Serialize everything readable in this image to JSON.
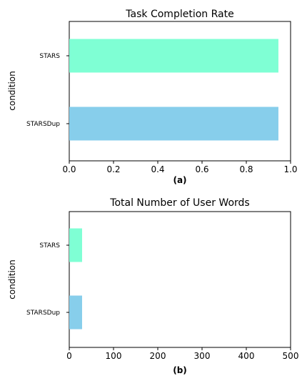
{
  "chart_data": [
    {
      "type": "bar",
      "orientation": "horizontal",
      "title": "Task Completion Rate",
      "xlabel": "(a)",
      "ylabel": "condition",
      "categories": [
        "STARS",
        "STARSDup"
      ],
      "values": [
        0.945,
        0.945
      ],
      "colors": [
        "#7fffd4",
        "#87ceeb"
      ],
      "xlim": [
        0,
        1.0
      ],
      "xticks": [
        "0.0",
        "0.2",
        "0.4",
        "0.6",
        "0.8",
        "1.0"
      ],
      "xtick_values": [
        0,
        0.2,
        0.4,
        0.6,
        0.8,
        1.0
      ],
      "grid": false
    },
    {
      "type": "bar",
      "orientation": "horizontal",
      "title": "Total Number of User Words",
      "xlabel": "(b)",
      "ylabel": "condition",
      "categories": [
        "STARS",
        "STARSDup"
      ],
      "values": [
        29,
        29
      ],
      "colors": [
        "#7fffd4",
        "#87ceeb"
      ],
      "xlim": [
        0,
        500
      ],
      "xticks": [
        "0",
        "100",
        "200",
        "300",
        "400",
        "500"
      ],
      "xtick_values": [
        0,
        100,
        200,
        300,
        400,
        500
      ],
      "grid": false
    }
  ]
}
